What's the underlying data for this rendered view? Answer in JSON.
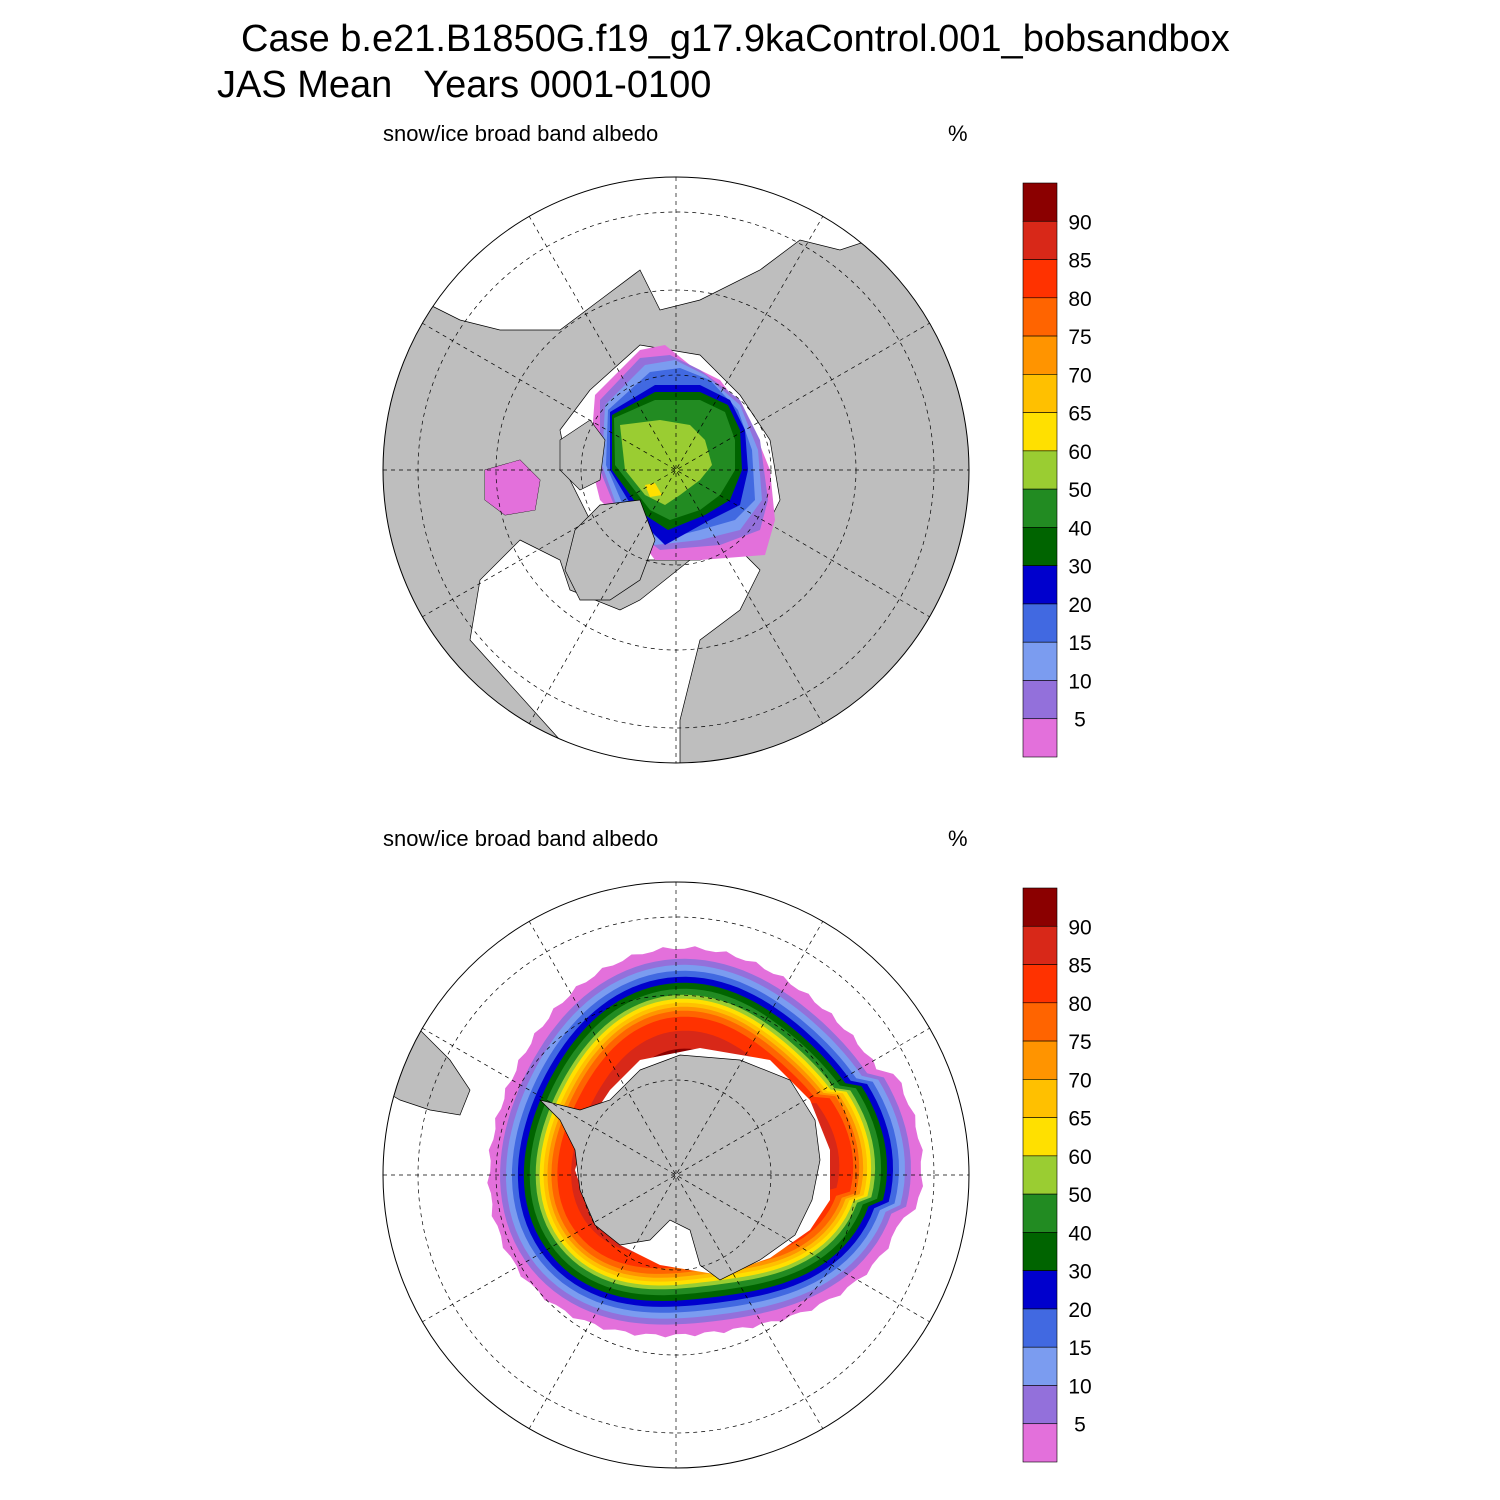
{
  "title": {
    "case": "Case b.e21.B1850G.f19_g17.9kaControl.001_bobsandbox",
    "subtitle": "JAS Mean   Years 0001-0100"
  },
  "chart_data": [
    {
      "type": "heatmap",
      "projection": "polar stereographic, north pole",
      "title": "snow/ice broad band albedo",
      "units": "%",
      "levels": [
        5,
        10,
        15,
        20,
        30,
        40,
        50,
        60,
        65,
        70,
        75,
        80,
        85,
        90
      ],
      "colorbar_labels": [
        "90",
        "85",
        "80",
        "75",
        "70",
        "65",
        "60",
        "50",
        "40",
        "30",
        "20",
        "15",
        "10",
        "5"
      ],
      "colors": [
        "#e370db",
        "#9370db",
        "#7b9cf0",
        "#4169e1",
        "#0000cd",
        "#006400",
        "#228b22",
        "#9acd32",
        "#ffe000",
        "#ffc000",
        "#ff9400",
        "#ff6400",
        "#ff3200",
        "#d82818",
        "#8b0000"
      ],
      "land_color": "#bebebe",
      "grid": true
    },
    {
      "type": "heatmap",
      "projection": "polar stereographic, south pole",
      "title": "snow/ice broad band albedo",
      "units": "%",
      "levels": [
        5,
        10,
        15,
        20,
        30,
        40,
        50,
        60,
        65,
        70,
        75,
        80,
        85,
        90
      ],
      "colorbar_labels": [
        "90",
        "85",
        "80",
        "75",
        "70",
        "65",
        "60",
        "50",
        "40",
        "30",
        "20",
        "15",
        "10",
        "5"
      ],
      "colors": [
        "#e370db",
        "#9370db",
        "#7b9cf0",
        "#4169e1",
        "#0000cd",
        "#006400",
        "#228b22",
        "#9acd32",
        "#ffe000",
        "#ffc000",
        "#ff9400",
        "#ff6400",
        "#ff3200",
        "#d82818",
        "#8b0000"
      ],
      "land_color": "#bebebe",
      "grid": true
    }
  ]
}
